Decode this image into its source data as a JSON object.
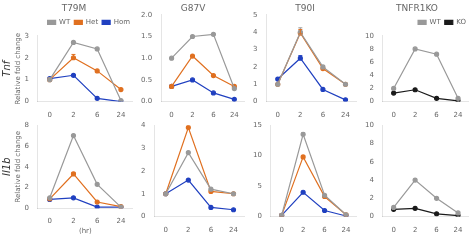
{
  "chart_data": [
    {
      "type": "line",
      "title": "T79M",
      "y_label": "Relative fold change",
      "annotations": [
        "Tnf"
      ],
      "categories": [
        "0",
        "2",
        "6",
        "24"
      ],
      "marker": "circle",
      "grid": false,
      "legend": "upper right",
      "ylim": [
        0,
        3
      ],
      "yticks": [
        0,
        1,
        2,
        3
      ],
      "series": [
        {
          "name": "WT",
          "color": "#999999",
          "values": [
            1.0,
            2.7,
            2.4,
            0.05
          ]
        },
        {
          "name": "Het",
          "color": "#e07020",
          "values": [
            1.0,
            2.0,
            1.4,
            0.55
          ],
          "error_low": [
            null,
            0.05,
            null,
            null
          ],
          "error_high": [
            null,
            0.15,
            null,
            null
          ]
        },
        {
          "name": "Hom",
          "color": "#2040c0",
          "values": [
            1.05,
            1.2,
            0.15,
            0.0
          ]
        }
      ]
    },
    {
      "type": "line",
      "title": "G87V",
      "categories": [
        "0",
        "2",
        "6",
        "24"
      ],
      "marker": "circle",
      "grid": false,
      "ylim": [
        0,
        2
      ],
      "yticks": [
        {
          "value": 0,
          "label": "0.0"
        },
        0.5,
        {
          "value": 1.0,
          "label": "1.0"
        },
        1.5,
        {
          "value": 2.0,
          "label": "2.0"
        }
      ],
      "series": [
        {
          "name": "WT",
          "color": "#999999",
          "values": [
            1.0,
            1.5,
            1.55,
            0.3
          ]
        },
        {
          "name": "Het",
          "color": "#e07020",
          "values": [
            0.35,
            1.05,
            0.6,
            0.35
          ]
        },
        {
          "name": "Hom",
          "color": "#2040c0",
          "values": [
            0.35,
            0.5,
            0.2,
            0.05
          ]
        }
      ]
    },
    {
      "type": "line",
      "title": "T90I",
      "categories": [
        "0",
        "2",
        "6",
        "24"
      ],
      "marker": "circle",
      "grid": false,
      "ylim": [
        0,
        5
      ],
      "yticks": [
        0,
        1,
        2,
        3,
        4,
        5
      ],
      "series": [
        {
          "name": "WT",
          "color": "#999999",
          "values": [
            1.0,
            4.0,
            2.0,
            1.0
          ],
          "error_low": [
            null,
            0.05,
            null,
            null
          ],
          "error_high": [
            null,
            0.25,
            null,
            null
          ]
        },
        {
          "name": "Het",
          "color": "#e07020",
          "values": [
            1.0,
            3.95,
            1.9,
            1.0
          ],
          "error_low": [
            null,
            0.05,
            null,
            null
          ],
          "error_high": [
            null,
            0.2,
            null,
            null
          ]
        },
        {
          "name": "Hom",
          "color": "#2040c0",
          "values": [
            1.3,
            2.5,
            0.7,
            0.1
          ],
          "error_low": [
            null,
            0.05,
            null,
            null
          ],
          "error_high": [
            null,
            0.15,
            null,
            null
          ]
        }
      ]
    },
    {
      "type": "line",
      "title": "TNFR1KO",
      "categories": [
        "0",
        "2",
        "6",
        "24"
      ],
      "marker": "circle",
      "grid": false,
      "legend": "upper right",
      "ylim": [
        0,
        10
      ],
      "yticks": [
        0,
        2,
        4,
        6,
        8,
        10
      ],
      "series": [
        {
          "name": "WT",
          "color": "#999999",
          "values": [
            2.0,
            8.0,
            7.2,
            0.5
          ]
        },
        {
          "name": "KO",
          "color": "#1a1a1a",
          "values": [
            1.3,
            1.8,
            0.5,
            0.1
          ]
        }
      ]
    },
    {
      "type": "line",
      "y_label": "Relative fold change",
      "x_label": "(hr)",
      "annotations": [
        "Il1b"
      ],
      "categories": [
        "0",
        "2",
        "6",
        "24"
      ],
      "marker": "circle",
      "grid": false,
      "ylim": [
        0,
        8
      ],
      "yticks": [
        0,
        2,
        4,
        6,
        8
      ],
      "series": [
        {
          "name": "WT",
          "color": "#999999",
          "values": [
            1.0,
            7.0,
            2.3,
            0.1
          ]
        },
        {
          "name": "Het",
          "color": "#e07020",
          "values": [
            0.9,
            3.3,
            0.6,
            0.15
          ],
          "error_low": [
            null,
            0.05,
            null,
            null
          ],
          "error_high": [
            null,
            0.15,
            null,
            null
          ]
        },
        {
          "name": "Hom",
          "color": "#2040c0",
          "values": [
            0.85,
            1.0,
            0.1,
            0.1
          ]
        }
      ]
    },
    {
      "type": "line",
      "categories": [
        "0",
        "2",
        "6",
        "24"
      ],
      "marker": "circle",
      "grid": false,
      "ylim": [
        0,
        4
      ],
      "yticks": [
        0,
        1,
        2,
        3,
        4
      ],
      "series": [
        {
          "name": "WT",
          "color": "#999999",
          "values": [
            1.0,
            2.8,
            1.2,
            1.0
          ]
        },
        {
          "name": "Het",
          "color": "#e07020",
          "values": [
            1.0,
            3.9,
            1.1,
            1.0
          ]
        },
        {
          "name": "Hom",
          "color": "#2040c0",
          "values": [
            1.0,
            1.6,
            0.4,
            0.3
          ]
        }
      ]
    },
    {
      "type": "line",
      "categories": [
        "0",
        "2",
        "6",
        "24"
      ],
      "marker": "circle",
      "grid": false,
      "ylim": [
        0,
        15
      ],
      "yticks": [
        0,
        5,
        10,
        15
      ],
      "series": [
        {
          "name": "WT",
          "color": "#999999",
          "values": [
            0.2,
            13.5,
            3.5,
            0.3
          ],
          "error_low": [
            null,
            0.05,
            null,
            null
          ],
          "error_high": [
            null,
            0.25,
            null,
            null
          ]
        },
        {
          "name": "Het",
          "color": "#e07020",
          "values": [
            0.2,
            9.8,
            3.3,
            0.3
          ],
          "error_low": [
            null,
            0.05,
            null,
            null
          ],
          "error_high": [
            null,
            0.2,
            null,
            null
          ]
        },
        {
          "name": "Hom",
          "color": "#2040c0",
          "values": [
            0.2,
            4.0,
            1.0,
            0.1
          ],
          "error_low": [
            null,
            0.05,
            null,
            null
          ],
          "error_high": [
            null,
            0.15,
            null,
            null
          ]
        }
      ]
    },
    {
      "type": "line",
      "categories": [
        "0",
        "2",
        "6",
        "24"
      ],
      "marker": "circle",
      "grid": false,
      "ylim": [
        0,
        10
      ],
      "yticks": [
        0,
        2,
        4,
        6,
        8,
        10
      ],
      "series": [
        {
          "name": "WT",
          "color": "#999999",
          "values": [
            1.0,
            4.0,
            2.0,
            0.4
          ]
        },
        {
          "name": "KO",
          "color": "#1a1a1a",
          "values": [
            0.8,
            0.9,
            0.3,
            0.1
          ]
        }
      ]
    }
  ]
}
